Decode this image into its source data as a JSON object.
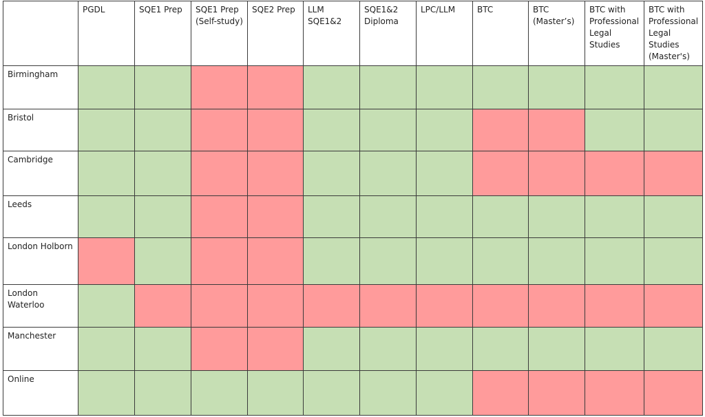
{
  "table": {
    "columns": [
      "PGDL",
      "SQE1 Prep",
      "SQE1 Prep (Self-study)",
      "SQE2 Prep",
      "LLM SQE1&2",
      "SQE1&2 Diploma",
      "LPC/LLM",
      "BTC",
      "BTC (Master’s)",
      "BTC with Professional Legal Studies",
      "BTC with Professional Legal Studies (Master's)"
    ],
    "rows": [
      {
        "location": "Birmingham",
        "availability": [
          1,
          1,
          0,
          0,
          1,
          1,
          1,
          1,
          1,
          1,
          1
        ]
      },
      {
        "location": "Bristol",
        "availability": [
          1,
          1,
          0,
          0,
          1,
          1,
          1,
          0,
          0,
          1,
          1
        ]
      },
      {
        "location": "Cambridge",
        "availability": [
          1,
          1,
          0,
          0,
          1,
          1,
          1,
          0,
          0,
          0,
          0
        ]
      },
      {
        "location": "Leeds",
        "availability": [
          1,
          1,
          0,
          0,
          1,
          1,
          1,
          1,
          1,
          1,
          1
        ]
      },
      {
        "location": "London Holborn",
        "availability": [
          0,
          1,
          0,
          0,
          1,
          1,
          1,
          1,
          1,
          1,
          1
        ]
      },
      {
        "location": "London Waterloo",
        "availability": [
          1,
          0,
          0,
          0,
          0,
          0,
          0,
          0,
          0,
          0,
          0
        ]
      },
      {
        "location": "Manchester",
        "availability": [
          1,
          1,
          0,
          0,
          1,
          1,
          1,
          1,
          1,
          1,
          1
        ]
      },
      {
        "location": "Online",
        "availability": [
          1,
          1,
          1,
          1,
          1,
          1,
          1,
          0,
          0,
          0,
          0
        ]
      }
    ]
  },
  "colors": {
    "available": "#c6dfb4",
    "unavailable": "#ff9b9b",
    "border": "#3a3a3a"
  }
}
